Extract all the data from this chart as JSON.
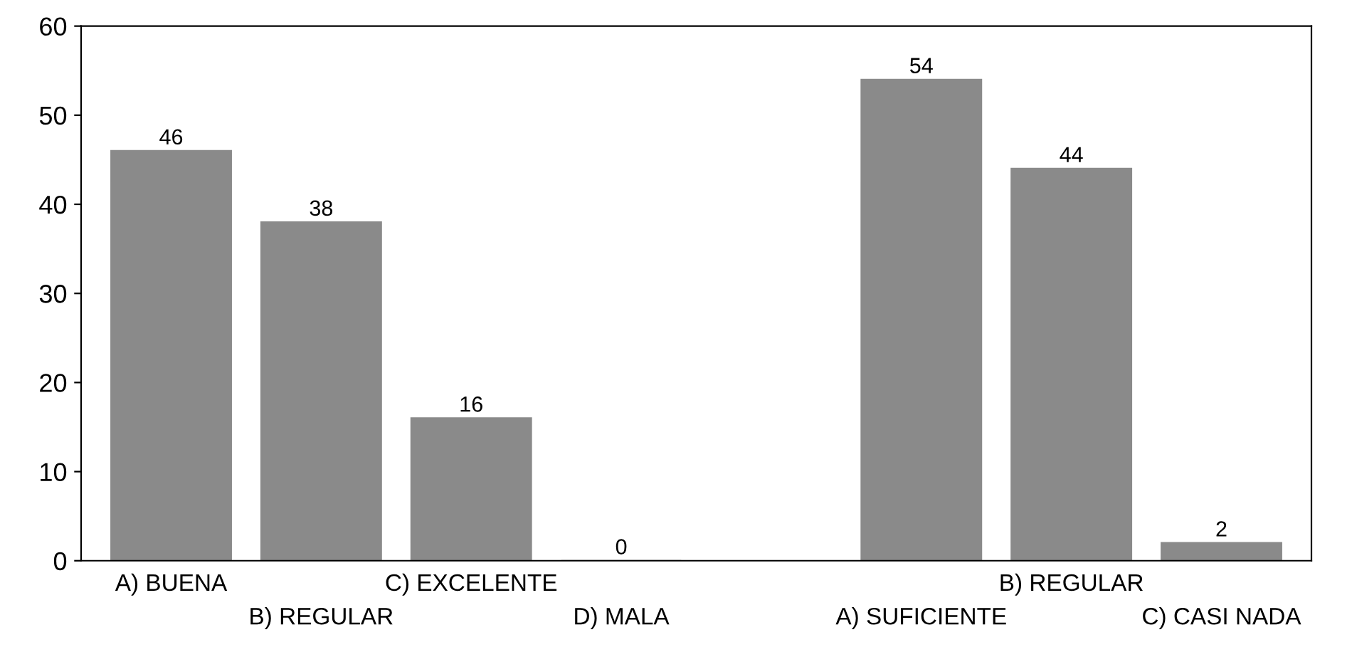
{
  "chart_data": {
    "type": "bar",
    "categories": [
      "A) BUENA",
      "B) REGULAR",
      "C) EXCELENTE",
      "D) MALA",
      null,
      "A) SUFICIENTE",
      "B) REGULAR",
      "C) CASI NADA"
    ],
    "values": [
      46,
      38,
      16,
      0,
      null,
      54,
      44,
      2
    ],
    "color": "#8a8a8a",
    "ylim": [
      0,
      60
    ],
    "yticks": [
      0,
      10,
      20,
      30,
      40,
      50,
      60
    ],
    "grid": false,
    "data_labels": true
  }
}
